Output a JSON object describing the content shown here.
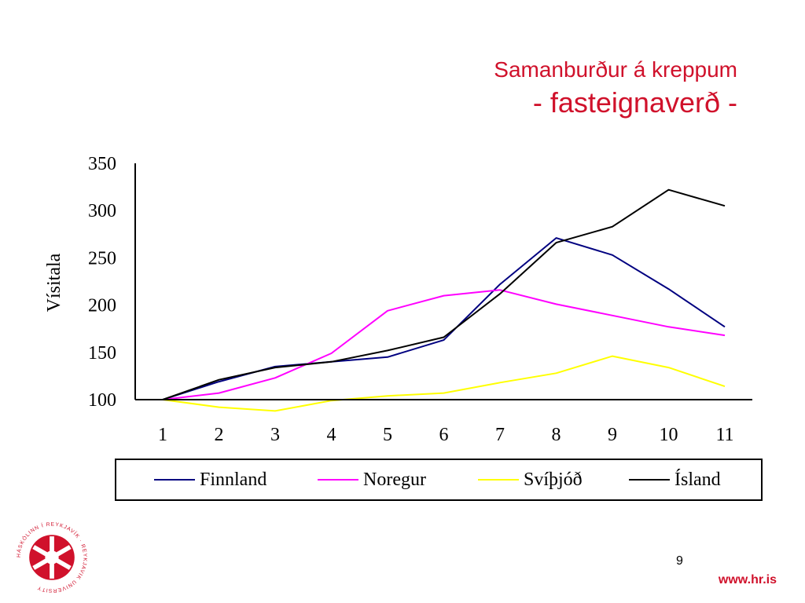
{
  "slide": {
    "title_line1": "Samanburður á kreppum",
    "title_line2": "- fasteignaverð -",
    "page_number": "9",
    "website": "www.hr.is",
    "logo_text": "HÁSKÓLINN Í REYKJAVÍK · REYKJAVIK UNIVERSITY",
    "accent_color": "#d0112b"
  },
  "chart_data": {
    "type": "line",
    "title": "",
    "xlabel": "",
    "ylabel": "Vísitala",
    "categories": [
      "1",
      "2",
      "3",
      "4",
      "5",
      "6",
      "7",
      "8",
      "9",
      "10",
      "11"
    ],
    "ylim": [
      100,
      350
    ],
    "yticks": [
      100,
      150,
      200,
      250,
      300,
      350
    ],
    "grid": false,
    "legend_position": "bottom",
    "series": [
      {
        "name": "Finnland",
        "color": "#000080",
        "values": [
          100,
          119,
          135,
          140,
          145,
          163,
          222,
          271,
          253,
          217,
          177
        ]
      },
      {
        "name": "Noregur",
        "color": "#ff00ff",
        "values": [
          100,
          107,
          123,
          149,
          194,
          210,
          216,
          201,
          189,
          177,
          168
        ]
      },
      {
        "name": "Svíþjóð",
        "color": "#ffff00",
        "values": [
          100,
          92,
          88,
          99,
          104,
          107,
          118,
          128,
          146,
          134,
          114
        ]
      },
      {
        "name": "Ísland",
        "color": "#000000",
        "values": [
          100,
          121,
          134,
          140,
          152,
          166,
          212,
          266,
          283,
          322,
          305
        ]
      }
    ]
  }
}
